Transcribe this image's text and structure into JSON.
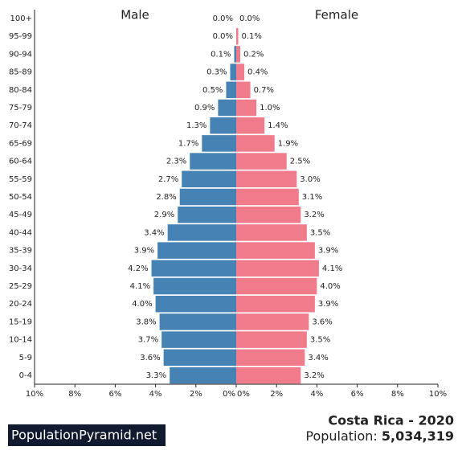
{
  "chart_data": {
    "type": "pyramid",
    "categories": [
      "100+",
      "95-99",
      "90-94",
      "85-89",
      "80-84",
      "75-79",
      "70-74",
      "65-69",
      "60-64",
      "55-59",
      "50-54",
      "45-49",
      "40-44",
      "35-39",
      "30-34",
      "25-29",
      "20-24",
      "15-19",
      "10-14",
      "5-9",
      "0-4"
    ],
    "series": [
      {
        "name": "Male",
        "color": "#4682b4",
        "side": "left",
        "values": [
          0.0,
          0.0,
          0.1,
          0.3,
          0.5,
          0.9,
          1.3,
          1.7,
          2.3,
          2.7,
          2.8,
          2.9,
          3.4,
          3.9,
          4.2,
          4.1,
          4.0,
          3.8,
          3.7,
          3.6,
          3.3
        ],
        "value_labels": [
          "0.0%",
          "0.0%",
          "0.1%",
          "0.3%",
          "0.5%",
          "0.9%",
          "1.3%",
          "1.7%",
          "2.3%",
          "2.7%",
          "2.8%",
          "2.9%",
          "3.4%",
          "3.9%",
          "4.2%",
          "4.1%",
          "4.0%",
          "3.8%",
          "3.7%",
          "3.6%",
          "3.3%"
        ]
      },
      {
        "name": "Female",
        "color": "#f07b8a",
        "side": "right",
        "values": [
          0.0,
          0.1,
          0.2,
          0.4,
          0.7,
          1.0,
          1.4,
          1.9,
          2.5,
          3.0,
          3.1,
          3.2,
          3.5,
          3.9,
          4.1,
          4.0,
          3.9,
          3.6,
          3.5,
          3.4,
          3.2
        ],
        "value_labels": [
          "0.0%",
          "0.1%",
          "0.2%",
          "0.4%",
          "0.7%",
          "1.0%",
          "1.4%",
          "1.9%",
          "2.5%",
          "3.0%",
          "3.1%",
          "3.2%",
          "3.5%",
          "3.9%",
          "4.1%",
          "4.0%",
          "3.9%",
          "3.6%",
          "3.5%",
          "3.4%",
          "3.2%"
        ]
      }
    ],
    "xlim": [
      0,
      10
    ],
    "xticks": [
      {
        "value": 0,
        "label": "0%"
      },
      {
        "value": 2,
        "label": "2%"
      },
      {
        "value": 4,
        "label": "4%"
      },
      {
        "value": 6,
        "label": "6%"
      },
      {
        "value": 8,
        "label": "8%"
      },
      {
        "value": 10,
        "label": "10%"
      }
    ]
  },
  "footer": {
    "brand": "PopulationPyramid.net",
    "title": "Costa Rica - 2020",
    "population_label": "Population:",
    "population": {
      "value": 5034319,
      "label": "5,034,319"
    }
  }
}
